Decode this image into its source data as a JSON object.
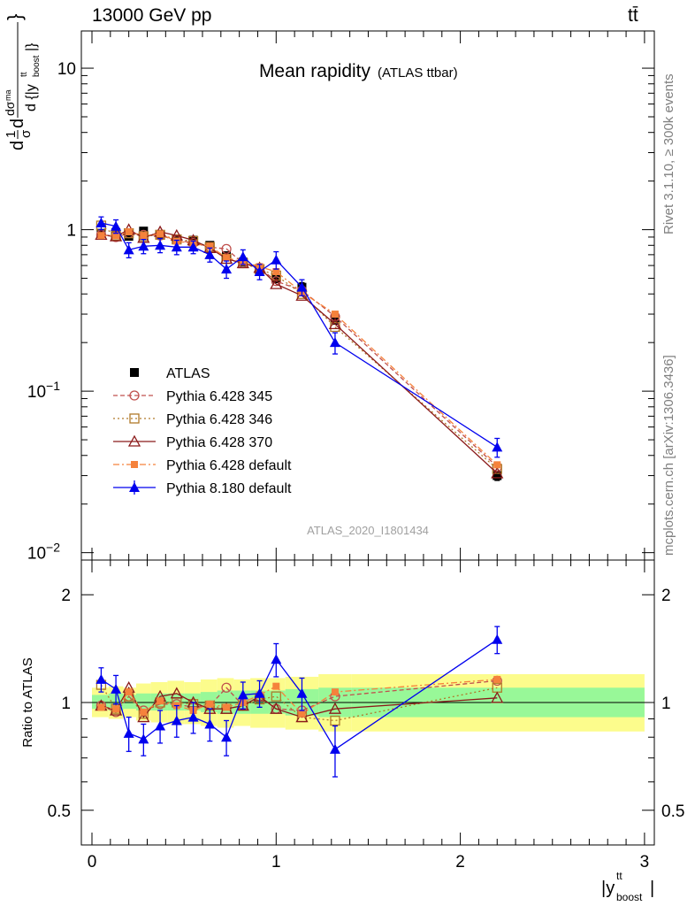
{
  "header": {
    "energy_label": "13000 GeV pp",
    "process_label": "tt̄"
  },
  "side_labels": {
    "rivet": "Rivet 3.1.10, ≥ 300k events",
    "mcplots": "mcplots.cern.ch [arXiv:1306.3436]"
  },
  "watermark": "ATLAS_2020_I1801434",
  "colors": {
    "ATLAS": "#000000",
    "Pythia 6.428 345": "#c0504d",
    "Pythia 6.428 346": "#b07a2a",
    "Pythia 6.428 370": "#8b1a1a",
    "Pythia 6.428 default": "#f5823c",
    "Pythia 8.180 default": "#0000ee",
    "band_inner": "#98f898",
    "band_outer": "#fcfc8c"
  },
  "chart_data": [
    {
      "type": "line",
      "title": "Mean rapidity",
      "subtitle": "(ATLAS ttbar)",
      "ylabel": "1/σ dσ/d |y_boost^tt| (mean)",
      "xlabel": "",
      "yscale": "log",
      "ylim": [
        0.009,
        17
      ],
      "xlim": [
        -0.07,
        3.07
      ],
      "yticks": [
        "10^-2",
        "10^-1",
        "1",
        "10"
      ],
      "legend_position": "middle-left",
      "x": [
        0.05,
        0.13,
        0.2,
        0.28,
        0.37,
        0.46,
        0.55,
        0.64,
        0.73,
        0.82,
        0.91,
        1.0,
        1.14,
        1.32,
        2.2
      ],
      "series": [
        {
          "name": "ATLAS",
          "marker": "filled-square",
          "values": [
            0.95,
            0.96,
            0.91,
            0.98,
            0.93,
            0.87,
            0.86,
            0.8,
            0.69,
            0.63,
            0.56,
            0.5,
            0.44,
            0.28,
            0.03
          ],
          "errors": [
            0.03,
            0.03,
            0.03,
            0.03,
            0.03,
            0.03,
            0.03,
            0.03,
            0.03,
            0.03,
            0.03,
            0.03,
            0.03,
            0.02,
            0.002
          ]
        },
        {
          "name": "Pythia 6.428 345",
          "marker": "open-circle",
          "values": [
            0.93,
            0.9,
            0.95,
            0.93,
            0.92,
            0.86,
            0.83,
            0.78,
            0.76,
            0.62,
            0.58,
            0.48,
            0.42,
            0.29,
            0.034
          ]
        },
        {
          "name": "Pythia 6.428 346",
          "marker": "open-square",
          "values": [
            1.06,
            0.92,
            0.95,
            0.91,
            0.93,
            0.87,
            0.85,
            0.78,
            0.66,
            0.62,
            0.57,
            0.52,
            0.4,
            0.25,
            0.033
          ]
        },
        {
          "name": "Pythia 6.428 370",
          "marker": "open-triangle",
          "values": [
            0.93,
            0.91,
            1.0,
            0.89,
            0.97,
            0.92,
            0.86,
            0.77,
            0.66,
            0.62,
            0.58,
            0.46,
            0.39,
            0.26,
            0.031
          ]
        },
        {
          "name": "Pythia 6.428 default",
          "marker": "filled-small-square",
          "values": [
            0.92,
            0.92,
            0.97,
            0.92,
            0.94,
            0.85,
            0.82,
            0.79,
            0.67,
            0.63,
            0.59,
            0.55,
            0.41,
            0.3,
            0.035
          ]
        },
        {
          "name": "Pythia 8.180 default",
          "marker": "filled-triangle",
          "values": [
            1.1,
            1.05,
            0.75,
            0.79,
            0.8,
            0.78,
            0.78,
            0.7,
            0.57,
            0.68,
            0.55,
            0.65,
            0.44,
            0.2,
            0.045
          ],
          "errors": [
            0.1,
            0.1,
            0.08,
            0.08,
            0.08,
            0.08,
            0.07,
            0.07,
            0.07,
            0.07,
            0.06,
            0.08,
            0.05,
            0.03,
            0.006
          ]
        }
      ]
    },
    {
      "type": "line",
      "title": "",
      "ylabel": "Ratio to ATLAS",
      "xlabel": "|y_boost^tt|",
      "yscale": "log",
      "ylim": [
        0.4,
        2.5
      ],
      "xlim": [
        -0.07,
        3.07
      ],
      "yticks": [
        "0.5",
        "1",
        "2"
      ],
      "xticks": [
        "0",
        "1",
        "2",
        "3"
      ],
      "x": [
        0.05,
        0.13,
        0.2,
        0.28,
        0.37,
        0.46,
        0.55,
        0.64,
        0.73,
        0.82,
        0.91,
        1.0,
        1.14,
        1.32,
        2.2
      ],
      "band_inner": [
        [
          0.0,
          0.09,
          0.96,
          1.05
        ],
        [
          0.09,
          0.17,
          0.95,
          1.06
        ],
        [
          0.17,
          0.24,
          0.96,
          1.05
        ],
        [
          0.24,
          0.32,
          0.95,
          1.06
        ],
        [
          0.32,
          0.41,
          0.95,
          1.06
        ],
        [
          0.41,
          0.5,
          0.95,
          1.06
        ],
        [
          0.5,
          0.59,
          0.95,
          1.06
        ],
        [
          0.59,
          0.68,
          0.94,
          1.07
        ],
        [
          0.68,
          0.77,
          0.93,
          1.08
        ],
        [
          0.77,
          0.86,
          0.93,
          1.08
        ],
        [
          0.86,
          0.96,
          0.93,
          1.08
        ],
        [
          0.96,
          1.05,
          0.93,
          1.08
        ],
        [
          1.05,
          1.23,
          0.92,
          1.09
        ],
        [
          1.23,
          1.41,
          0.91,
          1.1
        ],
        [
          1.41,
          3.0,
          0.91,
          1.1
        ]
      ],
      "band_outer": [
        [
          0.0,
          0.09,
          0.91,
          1.1
        ],
        [
          0.09,
          0.17,
          0.9,
          1.11
        ],
        [
          0.17,
          0.24,
          0.91,
          1.1
        ],
        [
          0.24,
          0.32,
          0.89,
          1.13
        ],
        [
          0.32,
          0.41,
          0.88,
          1.14
        ],
        [
          0.41,
          0.5,
          0.87,
          1.15
        ],
        [
          0.5,
          0.59,
          0.87,
          1.14
        ],
        [
          0.59,
          0.68,
          0.86,
          1.16
        ],
        [
          0.68,
          0.77,
          0.85,
          1.17
        ],
        [
          0.77,
          0.86,
          0.86,
          1.16
        ],
        [
          0.86,
          0.96,
          0.85,
          1.17
        ],
        [
          0.96,
          1.05,
          0.85,
          1.17
        ],
        [
          1.05,
          1.23,
          0.84,
          1.18
        ],
        [
          1.23,
          1.41,
          0.83,
          1.2
        ],
        [
          1.41,
          3.0,
          0.83,
          1.2
        ]
      ],
      "series": [
        {
          "name": "Pythia 6.428 345",
          "marker": "open-circle",
          "values": [
            0.98,
            0.94,
            1.04,
            0.95,
            0.99,
            0.99,
            0.97,
            0.98,
            1.1,
            0.98,
            1.04,
            0.96,
            0.95,
            1.04,
            1.15
          ]
        },
        {
          "name": "Pythia 6.428 346",
          "marker": "open-square",
          "values": [
            1.12,
            0.96,
            1.04,
            0.93,
            1.0,
            1.0,
            0.99,
            0.98,
            0.96,
            0.98,
            1.02,
            1.04,
            0.91,
            0.89,
            1.1
          ]
        },
        {
          "name": "Pythia 6.428 370",
          "marker": "open-triangle",
          "values": [
            0.98,
            0.95,
            1.1,
            0.91,
            1.04,
            1.06,
            1.0,
            0.96,
            0.96,
            0.98,
            1.04,
            0.96,
            0.91,
            0.96,
            1.03
          ]
        },
        {
          "name": "Pythia 6.428 default",
          "marker": "filled-small-square",
          "values": [
            0.97,
            0.96,
            1.07,
            0.94,
            1.01,
            0.98,
            0.95,
            0.99,
            0.97,
            1.0,
            1.05,
            1.11,
            0.93,
            1.07,
            1.16
          ]
        },
        {
          "name": "Pythia 8.180 default",
          "marker": "filled-triangle",
          "values": [
            1.16,
            1.09,
            0.82,
            0.79,
            0.86,
            0.89,
            0.91,
            0.87,
            0.8,
            1.05,
            1.06,
            1.32,
            1.06,
            0.74,
            1.5
          ],
          "errors": [
            0.09,
            0.1,
            0.09,
            0.08,
            0.09,
            0.09,
            0.09,
            0.09,
            0.09,
            0.09,
            0.09,
            0.14,
            0.11,
            0.12,
            0.13
          ]
        }
      ]
    }
  ]
}
